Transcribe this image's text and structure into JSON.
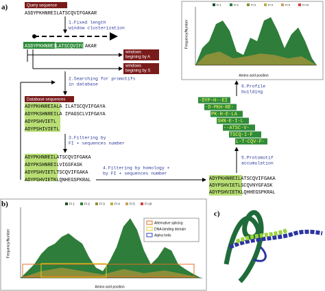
{
  "panel_a": {
    "label": "a)",
    "query_title": "Query sequence",
    "query_sequence": "ASDYPKHNREILATSCQVIFGAKAR",
    "step1": [
      "1.Fixed length",
      "window clusterization"
    ],
    "windowed_sequence": [
      "ASDYPKHNREI",
      "LATSCQVIFG",
      "AKAR"
    ],
    "windows_a": [
      "windows",
      "begining by A"
    ],
    "windows_s": [
      "windows",
      "begining by S"
    ],
    "step2": [
      "2.Searching for promotifs",
      "in database"
    ],
    "database_title": "Database sequences",
    "database_sequences": [
      "ADYPKHNREIALA  ILATSCQVIFGAYA",
      "ADYPKSHNREILA  IPAGSCLVIFGAYA",
      "ADYPSHVIETL",
      "ADYPSHIVIETL"
    ],
    "step3": [
      "3.Filtering by",
      "FI + sequences number"
    ],
    "filtered_sequences": [
      "ADYPKHNREILATSCQVIFGAKA",
      "ADYPKSHNREILVIGSFASK",
      "ADYPSHVIETLTSCQVIFGAKA",
      "ADYPSHVIETKLQNHEGSPKRAL"
    ],
    "step4": [
      "4.Filtering by homology +",
      "by FI + sequences number"
    ],
    "accumulated_sequences": [
      "ADYPKHNREILATSCQVIFGAKA",
      "ADYPSHVIETLSCQVNYGFASK",
      "ADYPSHVIETKLQHHEGSPKRAL"
    ],
    "step5": [
      "5.Protomotif",
      "accumulation"
    ],
    "step6": [
      "6.Profile",
      "building"
    ],
    "profile": [
      "-DYP-H--EI",
      "-D-PKH-RE-",
      "PK-H-E-LA",
      "SHN-E-I-L",
      "--ATSC-V-",
      "TSCQ-I-F",
      "L-T-CQV-F-"
    ],
    "chart_x_label": "Amino acid position",
    "chart_y_label": "Frequency/Number",
    "chart_legend": [
      "FI 1",
      "FI 2",
      "FI 3",
      "FI 4",
      "FI 5",
      "FI 10"
    ]
  },
  "panel_b": {
    "label": "b)",
    "legend": [
      "FI 1",
      "FI 2",
      "FI 3",
      "FI 4",
      "FI 5",
      "FI 10"
    ],
    "annotations": [
      "Alternative splicing",
      "DNA-binding domain",
      "Alpha helix"
    ],
    "x_label": "Amino acid position",
    "y_label": "Frequency/Number"
  },
  "panel_c": {
    "label": "c)"
  }
}
